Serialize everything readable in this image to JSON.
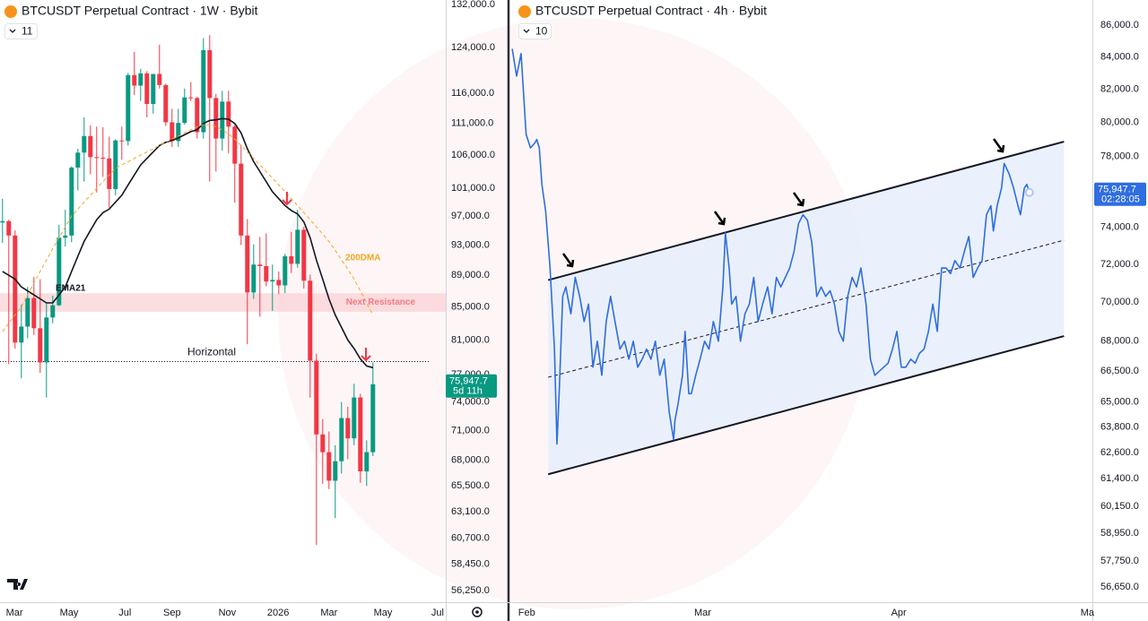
{
  "chart_data": [
    {
      "type": "candlestick",
      "title": "BTCUSDT Perpetual Contract · 1W · Bybit",
      "badge": "11",
      "log_scale": true,
      "up_color": "#089981",
      "down_color": "#f23645",
      "xlim": [
        -0.4,
        70.6
      ],
      "xticks": [
        {
          "value": 1.9,
          "label": "Mar"
        },
        {
          "value": 10.6,
          "label": "May"
        },
        {
          "value": 19.5,
          "label": "Jul"
        },
        {
          "value": 27.0,
          "label": "Sep"
        },
        {
          "value": 35.8,
          "label": "Nov"
        },
        {
          "value": 43.9,
          "label": "2026"
        },
        {
          "value": 52.0,
          "label": "Mar"
        },
        {
          "value": 60.6,
          "label": "May"
        },
        {
          "value": 69.3,
          "label": "Jul"
        }
      ],
      "ylim": [
        55450,
        132860
      ],
      "yticks": [
        {
          "value": 132000,
          "label": "132,000.0"
        },
        {
          "value": 124000,
          "label": "124,000.0"
        },
        {
          "value": 116000,
          "label": "116,000.0"
        },
        {
          "value": 111000,
          "label": "111,000.0"
        },
        {
          "value": 106000,
          "label": "106,000.0"
        },
        {
          "value": 101000,
          "label": "101,000.0"
        },
        {
          "value": 97000,
          "label": "97,000.0"
        },
        {
          "value": 93000,
          "label": "93,000.0"
        },
        {
          "value": 89000,
          "label": "89,000.0"
        },
        {
          "value": 85000,
          "label": "85,000.0"
        },
        {
          "value": 81000,
          "label": "81,000.0"
        },
        {
          "value": 77000,
          "label": "77,000.0"
        },
        {
          "value": 74000,
          "label": "74,000.0"
        },
        {
          "value": 71000,
          "label": "71,000.0"
        },
        {
          "value": 68000,
          "label": "68,000.0"
        },
        {
          "value": 65500,
          "label": "65,500.0"
        },
        {
          "value": 63100,
          "label": "63,100.0"
        },
        {
          "value": 60700,
          "label": "60,700.0"
        },
        {
          "value": 58450,
          "label": "58,450.0"
        },
        {
          "value": 56250,
          "label": "56,250.0"
        }
      ],
      "open": [
        96100,
        96300,
        94300,
        80700,
        82600,
        86100,
        82400,
        78400,
        83700,
        85200,
        94000,
        94300,
        104100,
        106400,
        109000,
        105700,
        105600,
        105500,
        100900,
        108300,
        108200,
        119100,
        117300,
        119400,
        114200,
        119300,
        117400,
        111200,
        108200,
        111100,
        115300,
        115200,
        109600,
        123500,
        115200,
        108600,
        114600,
        110500,
        104700,
        94300,
        86800,
        90400,
        90200,
        88200,
        88400,
        87700,
        91500,
        90500,
        95100,
        88300,
        78600,
        70600,
        68800,
        66000,
        67900,
        72300,
        70200,
        74500,
        66900,
        68800
      ],
      "high": [
        99500,
        96500,
        95000,
        85300,
        87500,
        88800,
        88500,
        85500,
        86400,
        95800,
        97900,
        104300,
        107000,
        112000,
        110700,
        110500,
        110400,
        108900,
        108500,
        110500,
        119500,
        123200,
        120200,
        119800,
        119300,
        124500,
        117600,
        113400,
        113400,
        116800,
        117900,
        115400,
        125700,
        126200,
        115900,
        116400,
        116400,
        110800,
        107500,
        96600,
        93100,
        94100,
        94600,
        90400,
        89500,
        91800,
        94800,
        97900,
        95500,
        89100,
        79400,
        72200,
        70900,
        69500,
        74000,
        73500,
        76000,
        74900,
        70000,
        78400
      ],
      "low": [
        93300,
        78200,
        80000,
        76600,
        81200,
        81600,
        77200,
        74500,
        83000,
        85100,
        92800,
        93400,
        100700,
        102000,
        103100,
        100400,
        102700,
        98200,
        100000,
        105300,
        107500,
        115700,
        114700,
        112000,
        112600,
        116800,
        110600,
        107300,
        107300,
        110800,
        114700,
        108600,
        108600,
        102000,
        103500,
        106700,
        106300,
        98900,
        93000,
        80500,
        86000,
        83800,
        87600,
        84500,
        86600,
        86700,
        89300,
        90000,
        87300,
        74500,
        60100,
        65700,
        65200,
        62500,
        66700,
        68100,
        69500,
        65800,
        65500,
        68400
      ],
      "close": [
        96300,
        94300,
        80700,
        82600,
        86100,
        82400,
        78400,
        83700,
        85200,
        94000,
        94300,
        104100,
        106400,
        109000,
        105700,
        105600,
        105500,
        100900,
        108300,
        108200,
        119100,
        117300,
        119400,
        114200,
        119300,
        117400,
        111200,
        108200,
        111100,
        115300,
        115200,
        109600,
        123500,
        115200,
        108600,
        114600,
        110500,
        104700,
        94300,
        86800,
        90400,
        90200,
        88200,
        88400,
        87700,
        91500,
        90500,
        95100,
        88300,
        78600,
        70600,
        68800,
        66000,
        67900,
        72300,
        70200,
        74500,
        66900,
        68800,
        75947.7
      ],
      "series": [
        {
          "name": "EMA21",
          "color": "#131722",
          "style": "solid",
          "values": [
            89500,
            89000,
            88500,
            87500,
            87000,
            86500,
            86000,
            85500,
            85500,
            86500,
            87500,
            89500,
            91500,
            93500,
            95000,
            96500,
            97500,
            98000,
            99000,
            100000,
            101500,
            103000,
            104500,
            105500,
            106500,
            107500,
            108000,
            108300,
            108700,
            109200,
            109700,
            110000,
            111000,
            111500,
            111600,
            111800,
            111700,
            111000,
            109500,
            107000,
            105000,
            103500,
            102000,
            100500,
            99500,
            98500,
            97800,
            97300,
            96200,
            94000,
            91000,
            88500,
            86000,
            84000,
            82500,
            81000,
            80000,
            78800,
            78000,
            77800
          ]
        },
        {
          "name": "200DMA",
          "color": "#f5a623",
          "style": "dashed",
          "values": [
            82000,
            83000,
            84000,
            85000,
            86500,
            88000,
            89500,
            91000,
            92500,
            94000,
            95500,
            97000,
            98000,
            99000,
            100000,
            101000,
            102000,
            103000,
            104000,
            104500,
            105000,
            105500,
            106000,
            106500,
            107000,
            107500,
            108000,
            108500,
            109000,
            109500,
            110000,
            110500,
            110800,
            110800,
            110500,
            110000,
            109300,
            108500,
            107500,
            106500,
            105500,
            104500,
            103500,
            102500,
            101500,
            100500,
            99500,
            98500,
            97500,
            96500,
            95500,
            94500,
            93500,
            92300,
            91000,
            89800,
            88500,
            87000,
            85500,
            84000
          ]
        }
      ],
      "zone": {
        "label": "Next Resistance",
        "range": [
          84400,
          86700
        ],
        "color": "#f9d0d3",
        "text_color": "#f07a84"
      },
      "horizontal": {
        "label": "Horizontal",
        "value": 78500
      },
      "price_label": "75,947.7",
      "countdown": "5d 11h"
    },
    {
      "type": "line",
      "title": "BTCUSDT Perpetual Contract · 4h · Bybit",
      "badge": "10",
      "log_scale": true,
      "color": "#2f6de1",
      "xlim": [
        -2.6,
        89.7
      ],
      "xticks": [
        {
          "value": 0,
          "label": "Feb"
        },
        {
          "value": 27.9,
          "label": "Mar"
        },
        {
          "value": 59.0,
          "label": "Apr"
        },
        {
          "value": 88.9,
          "label": "Ma"
        }
      ],
      "ylim": [
        56090,
        87620
      ],
      "yticks": [
        {
          "value": 86000,
          "label": "86,000.0"
        },
        {
          "value": 84000,
          "label": "84,000.0"
        },
        {
          "value": 82000,
          "label": "82,000.0"
        },
        {
          "value": 80000,
          "label": "80,000.0"
        },
        {
          "value": 78000,
          "label": "78,000.0"
        },
        {
          "value": 74000,
          "label": "74,000.0"
        },
        {
          "value": 72000,
          "label": "72,000.0"
        },
        {
          "value": 70000,
          "label": "70,000.0"
        },
        {
          "value": 68000,
          "label": "68,000.0"
        },
        {
          "value": 66500,
          "label": "66,500.0"
        },
        {
          "value": 65000,
          "label": "65,000.0"
        },
        {
          "value": 63800,
          "label": "63,800.0"
        },
        {
          "value": 62600,
          "label": "62,600.0"
        },
        {
          "value": 61400,
          "label": "61,400.0"
        },
        {
          "value": 60150,
          "label": "60,150.0"
        },
        {
          "value": 58950,
          "label": "58,950.0"
        },
        {
          "value": 57750,
          "label": "57,750.0"
        },
        {
          "value": 56650,
          "label": "56,650.0"
        }
      ],
      "x": [
        -2.3,
        -1.6,
        -0.9,
        -0.1,
        0.6,
        1.3,
        1.6,
        2.0,
        2.4,
        3.0,
        3.7,
        4.4,
        4.8,
        5.2,
        5.7,
        6.2,
        7.0,
        7.7,
        8.4,
        9.1,
        9.8,
        10.5,
        11.2,
        11.9,
        12.6,
        13.3,
        14.0,
        14.8,
        15.5,
        16.2,
        16.9,
        17.6,
        18.3,
        19.0,
        19.7,
        20.4,
        21.1,
        21.8,
        22.6,
        23.3,
        23.5,
        24.0,
        24.7,
        25.1,
        25.7,
        26.1,
        26.8,
        27.5,
        28.2,
        28.9,
        29.6,
        30.4,
        31.1,
        31.5,
        32.1,
        32.5,
        33.2,
        33.9,
        34.6,
        35.3,
        36.0,
        36.7,
        37.4,
        38.2,
        38.9,
        39.6,
        40.3,
        41.0,
        41.7,
        42.4,
        43.1,
        43.8,
        44.5,
        45.2,
        46.0,
        46.7,
        47.4,
        48.1,
        48.8,
        49.5,
        50.2,
        50.9,
        51.6,
        52.3,
        53.0,
        53.8,
        54.5,
        55.2,
        55.9,
        56.6,
        57.3,
        58.0,
        58.7,
        59.4,
        60.1,
        60.9,
        61.6,
        62.3,
        63.0,
        63.7,
        64.4,
        65.1,
        65.8,
        66.5,
        67.2,
        67.9,
        68.7,
        69.4,
        70.1,
        70.8,
        71.5,
        72.2,
        72.9,
        73.6,
        74.0,
        74.6,
        75.3,
        75.7,
        76.5,
        77.2,
        77.9,
        78.3,
        78.9,
        79.3,
        79.7
      ],
      "values": [
        84500,
        82800,
        84200,
        79300,
        78500,
        78800,
        79000,
        78500,
        76400,
        74900,
        71800,
        67600,
        63000,
        65800,
        70300,
        70800,
        69400,
        71300,
        70300,
        69000,
        69900,
        66700,
        68000,
        66300,
        69000,
        70300,
        69000,
        67600,
        68000,
        67100,
        68000,
        66700,
        67100,
        67600,
        67100,
        68000,
        66300,
        67100,
        64500,
        63200,
        64100,
        64900,
        66300,
        68500,
        65400,
        65400,
        66300,
        67100,
        68000,
        67600,
        69000,
        68000,
        70800,
        73700,
        71800,
        69900,
        70300,
        68000,
        69400,
        69900,
        71300,
        69000,
        69900,
        70800,
        69400,
        71300,
        70800,
        71300,
        71800,
        72700,
        74200,
        74700,
        74400,
        73200,
        70300,
        70800,
        70300,
        70600,
        69900,
        68500,
        68000,
        70300,
        71300,
        70800,
        71800,
        69900,
        67100,
        66300,
        66500,
        66700,
        66900,
        67600,
        68500,
        66700,
        66700,
        67100,
        66900,
        67400,
        67600,
        68500,
        69900,
        68500,
        71800,
        71800,
        71500,
        72200,
        71800,
        72700,
        73500,
        71300,
        71800,
        72200,
        74700,
        75200,
        73800,
        75200,
        76200,
        77600,
        77000,
        76200,
        75200,
        74700,
        76200,
        76400,
        75947.7
      ],
      "channel": {
        "x": [
          3.4,
          85.2
        ],
        "upper": [
          71160,
          78870
        ],
        "lower": [
          61600,
          68260
        ],
        "mid": [
          66200,
          73300
        ],
        "color": "#131722",
        "fill_color": "#e6eefc"
      },
      "price_label": "75,947.7",
      "countdown": "02:28:05"
    }
  ]
}
